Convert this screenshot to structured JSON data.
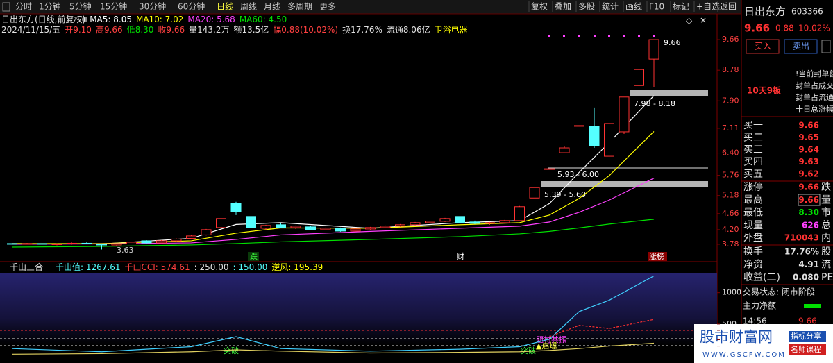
{
  "toolbar": {
    "periods": [
      "分时",
      "1分钟",
      "5分钟",
      "15分钟",
      "30分钟",
      "60分钟",
      "日线",
      "周线",
      "月线",
      "多周期",
      "更多"
    ],
    "active": 6,
    "tools": [
      "复权",
      "叠加",
      "多股",
      "统计",
      "画线",
      "F10",
      "标记",
      "+自选",
      "返回"
    ]
  },
  "header": {
    "line1": [
      {
        "text": "日出东方(日线,前复权)",
        "color": "#e0e0e0"
      },
      {
        "text": "MA5: 8.05",
        "color": "#ffffff"
      },
      {
        "text": "MA10: 7.02",
        "color": "#ffff00"
      },
      {
        "text": "MA20: 5.68",
        "color": "#ff40ff"
      },
      {
        "text": "MA60: 4.50",
        "color": "#00e000"
      }
    ],
    "line2": [
      {
        "text": "2024/11/15/五",
        "color": "#e0e0e0"
      },
      {
        "text": "开9.10",
        "color": "#ff4040"
      },
      {
        "text": "高9.66",
        "color": "#ff4040"
      },
      {
        "text": "低8.30",
        "color": "#00e000"
      },
      {
        "text": "收9.66",
        "color": "#ff4040"
      },
      {
        "text": "量143.2万",
        "color": "#e0e0e0"
      },
      {
        "text": "额13.5亿",
        "color": "#e0e0e0"
      },
      {
        "text": "幅0.88(10.02%)",
        "color": "#ff4040"
      },
      {
        "text": "换17.76%",
        "color": "#e0e0e0"
      },
      {
        "text": "流通8.06亿",
        "color": "#e0e0e0"
      },
      {
        "text": "卫浴电器",
        "color": "#ffff00"
      }
    ]
  },
  "price_chart": {
    "ylim": [
      3.52,
      9.9
    ],
    "yticks": [
      9.66,
      8.78,
      {
        "value": 7.9,
        "label": "7.90"
      },
      7.11,
      {
        "value": 6.4,
        "label": "6.40"
      },
      5.76,
      5.18,
      4.66,
      {
        "value": 4.2,
        "label": "4.20"
      },
      3.78
    ],
    "up_color": "#ff3232",
    "down_color": "#54ffff",
    "candles": [
      [
        3.8,
        3.83,
        3.76,
        3.79
      ],
      [
        3.79,
        3.82,
        3.77,
        3.8
      ],
      [
        3.8,
        3.82,
        3.76,
        3.78
      ],
      [
        3.78,
        3.81,
        3.75,
        3.79
      ],
      [
        3.79,
        3.83,
        3.77,
        3.81
      ],
      [
        3.81,
        3.84,
        3.78,
        3.8
      ],
      [
        3.78,
        3.8,
        3.63,
        3.76
      ],
      [
        3.76,
        3.8,
        3.74,
        3.79
      ],
      [
        3.79,
        3.86,
        3.78,
        3.84
      ],
      [
        3.88,
        3.9,
        3.8,
        3.82
      ],
      [
        3.82,
        3.9,
        3.81,
        3.88
      ],
      [
        3.88,
        3.95,
        3.86,
        3.93
      ],
      [
        3.95,
        4.05,
        3.93,
        4.02
      ],
      [
        4.05,
        4.22,
        4.03,
        4.2
      ],
      [
        4.26,
        4.56,
        4.24,
        4.52
      ],
      [
        4.96,
        5.0,
        4.62,
        4.72
      ],
      [
        4.58,
        4.62,
        4.24,
        4.26
      ],
      [
        4.24,
        4.34,
        4.2,
        4.32
      ],
      [
        4.34,
        4.38,
        4.24,
        4.26
      ],
      [
        4.26,
        4.32,
        4.22,
        4.3
      ],
      [
        4.28,
        4.3,
        4.18,
        4.2
      ],
      [
        4.2,
        4.26,
        4.18,
        4.24
      ],
      [
        4.24,
        4.26,
        4.14,
        4.16
      ],
      [
        4.16,
        4.24,
        4.14,
        4.22
      ],
      [
        4.22,
        4.28,
        4.2,
        4.26
      ],
      [
        4.26,
        4.32,
        4.24,
        4.3
      ],
      [
        4.3,
        4.36,
        4.28,
        4.34
      ],
      [
        4.34,
        4.42,
        4.32,
        4.4
      ],
      [
        4.4,
        4.46,
        4.36,
        4.44
      ],
      [
        4.44,
        4.54,
        4.42,
        4.52
      ],
      [
        4.58,
        4.62,
        4.38,
        4.4
      ],
      [
        4.42,
        4.46,
        4.36,
        4.38
      ],
      [
        4.38,
        4.42,
        4.34,
        4.4
      ],
      [
        4.4,
        4.48,
        4.38,
        4.46
      ],
      [
        4.46,
        4.88,
        4.44,
        4.86
      ],
      [
        5.11,
        5.41,
        5.11,
        5.41
      ],
      [
        5.95,
        5.95,
        5.95,
        5.95
      ],
      [
        6.41,
        6.59,
        6.4,
        6.55
      ],
      [
        7.19,
        7.19,
        7.19,
        7.19
      ],
      [
        7.17,
        7.71,
        6.55,
        6.61
      ],
      [
        6.31,
        7.25,
        6.07,
        7.25
      ],
      [
        7.01,
        8.01,
        6.95,
        8.01
      ],
      [
        8.34,
        8.8,
        8.3,
        8.8
      ],
      [
        9.1,
        9.66,
        8.3,
        9.66
      ]
    ],
    "line_index": [
      0,
      6,
      12,
      15,
      18,
      24,
      30,
      34,
      36,
      38,
      40,
      43
    ],
    "ma_lines": [
      {
        "color": "#ffffff",
        "values": [
          3.8,
          3.79,
          3.95,
          4.35,
          4.4,
          4.24,
          4.4,
          4.46,
          4.95,
          5.85,
          6.7,
          8.05
        ]
      },
      {
        "color": "#ffff00",
        "values": [
          3.8,
          3.8,
          3.88,
          4.1,
          4.25,
          4.24,
          4.34,
          4.4,
          4.62,
          5.1,
          5.75,
          7.02
        ]
      },
      {
        "color": "#ff40ff",
        "values": [
          3.78,
          3.79,
          3.82,
          3.92,
          4.05,
          4.15,
          4.24,
          4.3,
          4.42,
          4.7,
          5.05,
          5.68
        ]
      },
      {
        "color": "#00e000",
        "values": [
          3.7,
          3.72,
          3.76,
          3.8,
          3.85,
          3.92,
          4.0,
          4.08,
          4.15,
          4.25,
          4.36,
          4.5
        ]
      }
    ],
    "annotations": [
      "3.63",
      "5.93 - 6.00",
      "5.39 - 5.60",
      "7.98 - 8.18",
      "9.66"
    ],
    "events": [
      "跌",
      "财",
      "涨榜"
    ]
  },
  "indicator": {
    "header": [
      {
        "text": "千山三合一",
        "color": "#e0e0e0"
      },
      {
        "text": "千山值: 1267.61",
        "color": "#54ffff"
      },
      {
        "text": "千山CCI: 574.61",
        "color": "#ff4040"
      },
      {
        "text": ": 250.00",
        "color": "#e0e0e0"
      },
      {
        "text": ": 150.00",
        "color": "#54ffff"
      },
      {
        "text": "逆风: 195.39",
        "color": "#ffff00"
      }
    ],
    "ylim": [
      -120,
      1295
    ],
    "yticks": [
      1000,
      500,
      400,
      250,
      150
    ],
    "lines": [
      {
        "color": "#40d0ff",
        "values": [
          110,
          60,
          140,
          300,
          110,
          70,
          100,
          140,
          260,
          700,
          880,
          1267.61
        ]
      },
      {
        "color": "#ff3030",
        "values": [
          null,
          null,
          null,
          null,
          null,
          null,
          null,
          null,
          300,
          480,
          430,
          574.61
        ]
      },
      {
        "color": "#e0d060",
        "values": [
          20,
          30,
          60,
          90,
          70,
          40,
          50,
          60,
          80,
          110,
          150,
          195.39
        ]
      }
    ],
    "annotations": [
      "突破",
      "突破",
      "题材共振",
      "▲启爆"
    ]
  },
  "quote": {
    "name": "日出东方",
    "code": "603366",
    "price": "9.66",
    "change": "0.88",
    "pct": "10.02%",
    "buy": "买入",
    "sell": "卖出",
    "streak": "10天9板",
    "notes": [
      "!当前封单额",
      "封单占成交",
      "封单占流通",
      "十日总涨幅"
    ],
    "book": [
      [
        "买一",
        "9.66"
      ],
      [
        "买二",
        "9.65"
      ],
      [
        "买三",
        "9.64"
      ],
      [
        "买四",
        "9.63"
      ],
      [
        "买五",
        "9.62"
      ]
    ],
    "stats": [
      [
        "涨停",
        "9.66",
        "跌"
      ],
      [
        "最高",
        "9.66",
        "量"
      ],
      [
        "最低",
        "8.30",
        "市"
      ],
      [
        "现量",
        "626",
        "总"
      ],
      [
        "外盘",
        "710043",
        "内"
      ]
    ],
    "stats2": [
      [
        "换手",
        "17.76%",
        "股"
      ],
      [
        "净资",
        "4.91",
        "流"
      ],
      [
        "收益(二)",
        "0.080",
        "PE"
      ]
    ],
    "status": "交易状态: 闭市阶段",
    "main_flow": "主力净额",
    "time": "14:56",
    "last": "9.66"
  },
  "watermark": {
    "name": "股市财富网",
    "tag1": "指标分享",
    "tag2": "名师课程",
    "url": "WWW.GSCFW.COM"
  }
}
